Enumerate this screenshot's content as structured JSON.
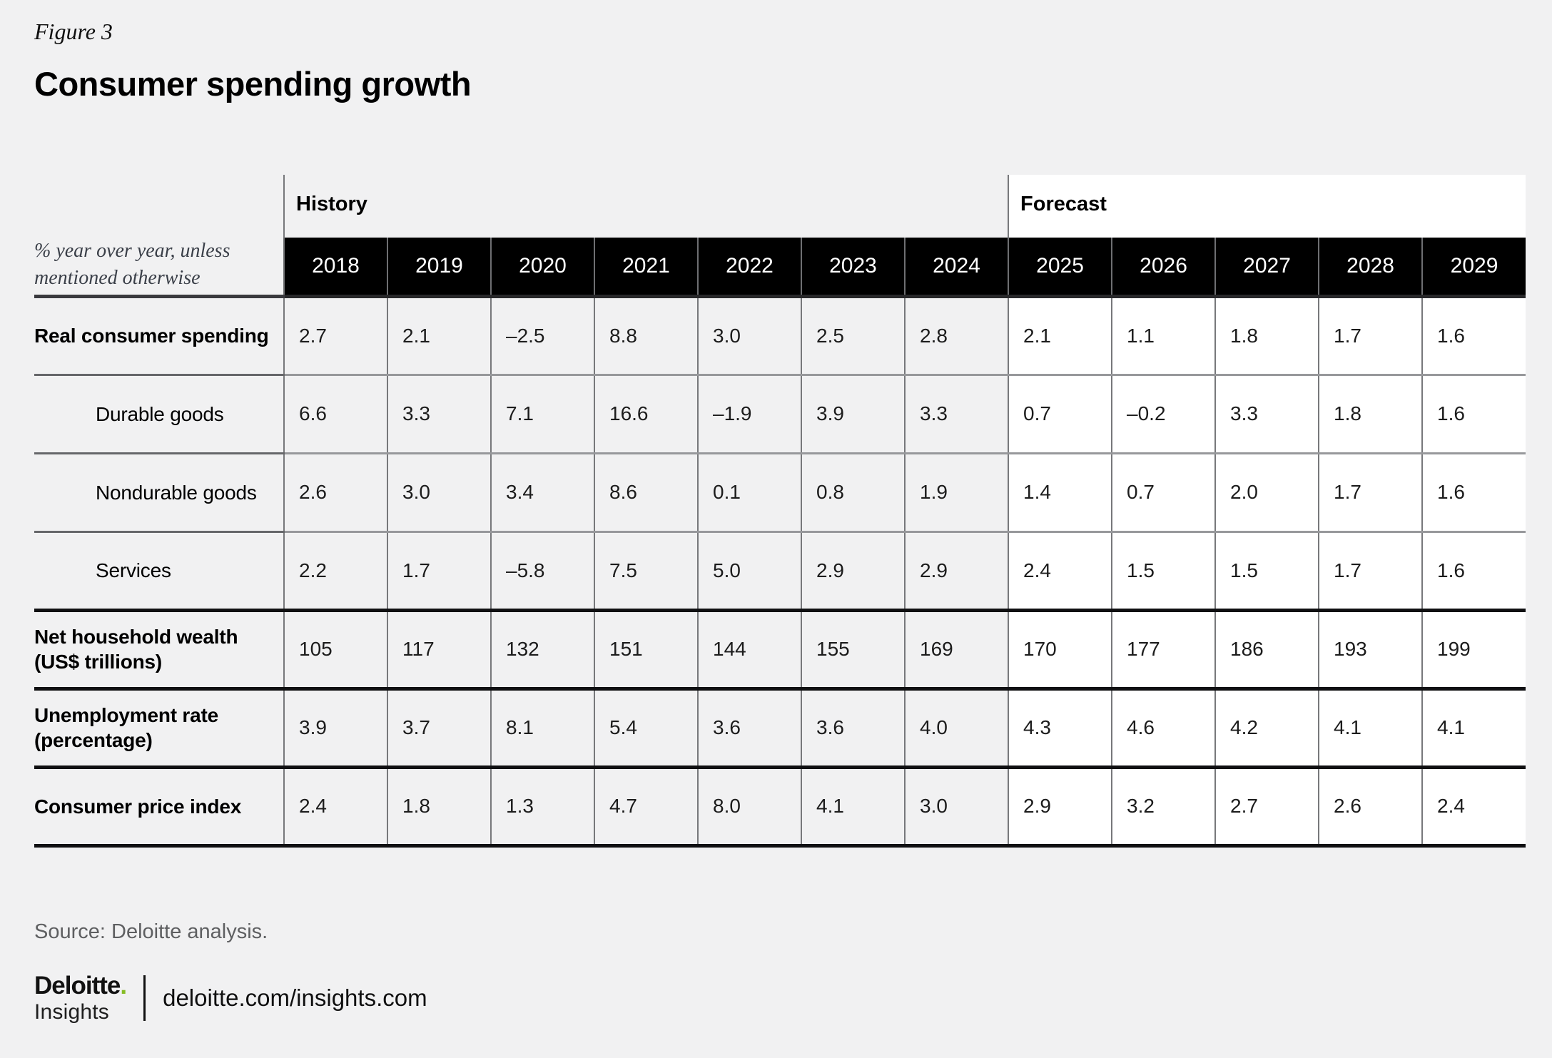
{
  "page": {
    "background": "#f1f1f2"
  },
  "colors": {
    "page_bg": "#f1f1f2",
    "forecast_bg": "#ffffff",
    "year_header_bg": "#000000",
    "year_header_text": "#ffffff",
    "grid_line": "#77787b",
    "thin_separator": "#97989b",
    "thick_rule": "#101012",
    "note_text": "#3a3f48",
    "source_text": "#5e5f61",
    "accent_green": "#86bc25"
  },
  "chart_data": {
    "type": "table",
    "figure_label": "Figure 3",
    "title": "Consumer spending growth",
    "unit_note": "% year over year, unless mentioned otherwise",
    "column_groups": [
      {
        "label": "History",
        "span": 7
      },
      {
        "label": "Forecast",
        "span": 5
      }
    ],
    "columns": [
      "2018",
      "2019",
      "2020",
      "2021",
      "2022",
      "2023",
      "2024",
      "2025",
      "2026",
      "2027",
      "2028",
      "2029"
    ],
    "forecast_start_index": 7,
    "rows": [
      {
        "label": "Real consumer spending",
        "emphasis": "bold",
        "indent": false,
        "separator": "thin",
        "values": [
          "2.7",
          "2.1",
          "–2.5",
          "8.8",
          "3.0",
          "2.5",
          "2.8",
          "2.1",
          "1.1",
          "1.8",
          "1.7",
          "1.6"
        ]
      },
      {
        "label": "Durable goods",
        "emphasis": "normal",
        "indent": true,
        "separator": "thin",
        "values": [
          "6.6",
          "3.3",
          "7.1",
          "16.6",
          "–1.9",
          "3.9",
          "3.3",
          "0.7",
          "–0.2",
          "3.3",
          "1.8",
          "1.6"
        ]
      },
      {
        "label": "Nondurable goods",
        "emphasis": "normal",
        "indent": true,
        "separator": "thin",
        "values": [
          "2.6",
          "3.0",
          "3.4",
          "8.6",
          "0.1",
          "0.8",
          "1.9",
          "1.4",
          "0.7",
          "2.0",
          "1.7",
          "1.6"
        ]
      },
      {
        "label": "Services",
        "emphasis": "normal",
        "indent": true,
        "separator": "thick",
        "values": [
          "2.2",
          "1.7",
          "–5.8",
          "7.5",
          "5.0",
          "2.9",
          "2.9",
          "2.4",
          "1.5",
          "1.5",
          "1.7",
          "1.6"
        ]
      },
      {
        "label": "Net household wealth (US$ trillions)",
        "emphasis": "bold",
        "indent": false,
        "separator": "thick",
        "values": [
          "105",
          "117",
          "132",
          "151",
          "144",
          "155",
          "169",
          "170",
          "177",
          "186",
          "193",
          "199"
        ]
      },
      {
        "label": "Unemployment rate (percentage)",
        "emphasis": "bold",
        "indent": false,
        "separator": "thick",
        "values": [
          "3.9",
          "3.7",
          "8.1",
          "5.4",
          "3.6",
          "3.6",
          "4.0",
          "4.3",
          "4.6",
          "4.2",
          "4.1",
          "4.1"
        ]
      },
      {
        "label": "Consumer price index",
        "emphasis": "bold",
        "indent": false,
        "separator": "thick",
        "values": [
          "2.4",
          "1.8",
          "1.3",
          "4.7",
          "8.0",
          "4.1",
          "3.0",
          "2.9",
          "3.2",
          "2.7",
          "2.6",
          "2.4"
        ]
      }
    ],
    "source": "Source: Deloitte analysis."
  },
  "footer": {
    "brand": "Deloitte",
    "brand_dot": ".",
    "brand_sub": "Insights",
    "site": "deloitte.com/insights.com"
  }
}
